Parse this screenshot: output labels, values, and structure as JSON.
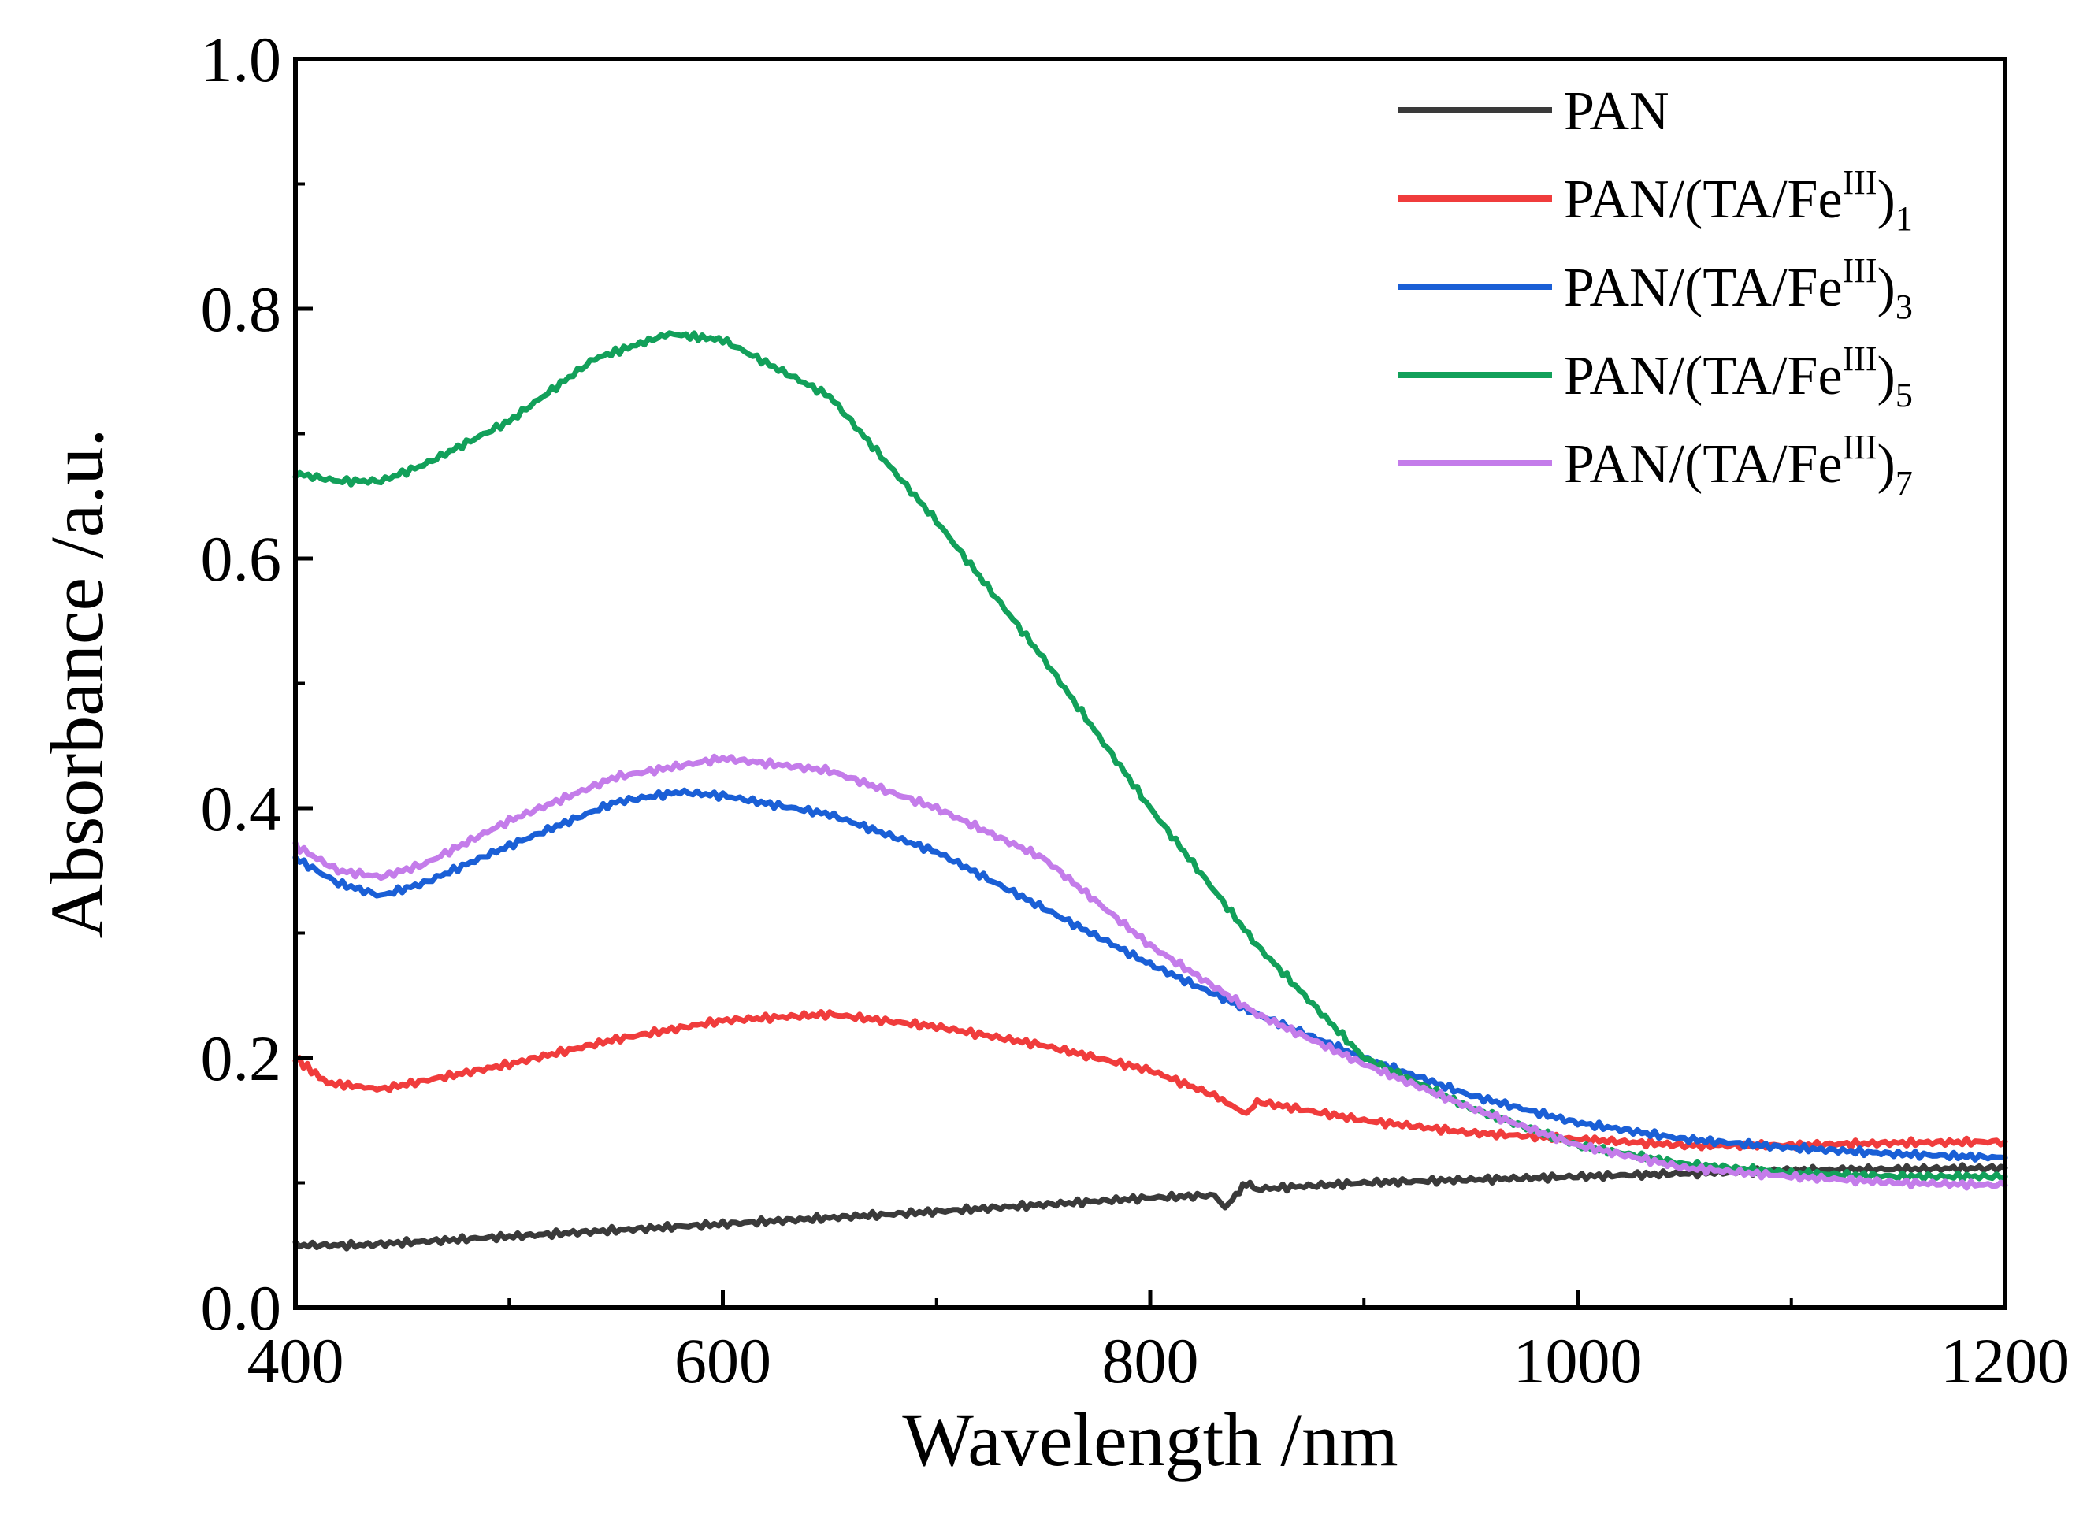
{
  "chart_data": {
    "type": "line",
    "title": "",
    "xlabel": "Wavelength /nm",
    "ylabel": "Absorbance /a.u.",
    "xlim": [
      400,
      1200
    ],
    "ylim": [
      0.0,
      1.0
    ],
    "x_ticks": [
      400,
      600,
      800,
      1000,
      1200
    ],
    "x_tick_labels": [
      "400",
      "600",
      "800",
      "1000",
      "1200"
    ],
    "y_ticks": [
      0.0,
      0.2,
      0.4,
      0.6,
      0.8,
      1.0
    ],
    "y_tick_labels": [
      "0.0",
      "0.2",
      "0.4",
      "0.6",
      "0.8",
      "1.0"
    ],
    "grid": false,
    "legend_position": "top-right",
    "series": [
      {
        "name": "PAN",
        "label_main": "PAN",
        "label_sup": "",
        "label_sub": "",
        "color": "#3a3a3a",
        "x": [
          400,
          430,
          500,
          600,
          700,
          800,
          830,
          835,
          840,
          845,
          850,
          900,
          1000,
          1100,
          1200
        ],
        "y": [
          0.05,
          0.05,
          0.057,
          0.067,
          0.077,
          0.088,
          0.09,
          0.08,
          0.09,
          0.1,
          0.095,
          0.1,
          0.105,
          0.11,
          0.112
        ]
      },
      {
        "name": "PAN/(TA/Fe III)1",
        "label_main": "PAN/(TA/Fe",
        "label_sup": "III",
        "label_sub": "1",
        "color": "#f03c3c",
        "x": [
          400,
          415,
          440,
          470,
          500,
          550,
          600,
          650,
          700,
          750,
          800,
          830,
          845,
          850,
          900,
          950,
          1000,
          1050,
          1100,
          1150,
          1200
        ],
        "y": [
          0.2,
          0.18,
          0.175,
          0.185,
          0.195,
          0.215,
          0.23,
          0.235,
          0.225,
          0.21,
          0.19,
          0.17,
          0.155,
          0.165,
          0.15,
          0.14,
          0.135,
          0.13,
          0.13,
          0.132,
          0.133
        ]
      },
      {
        "name": "PAN/(TA/Fe III)3",
        "label_main": "PAN/(TA/Fe",
        "label_sup": "III",
        "label_sub": "3",
        "color": "#1a5fd6",
        "x": [
          400,
          420,
          440,
          460,
          500,
          550,
          580,
          600,
          650,
          700,
          750,
          800,
          850,
          900,
          950,
          1000,
          1050,
          1100,
          1150,
          1200
        ],
        "y": [
          0.36,
          0.34,
          0.33,
          0.34,
          0.37,
          0.405,
          0.413,
          0.41,
          0.395,
          0.365,
          0.32,
          0.275,
          0.235,
          0.2,
          0.17,
          0.148,
          0.135,
          0.128,
          0.123,
          0.12
        ]
      },
      {
        "name": "PAN/(TA/Fe III)5",
        "label_main": "PAN/(TA/Fe",
        "label_sup": "III",
        "label_sub": "5",
        "color": "#12a05a",
        "x": [
          400,
          420,
          440,
          460,
          500,
          540,
          575,
          600,
          650,
          700,
          750,
          800,
          850,
          900,
          950,
          1000,
          1050,
          1100,
          1150,
          1200
        ],
        "y": [
          0.668,
          0.662,
          0.662,
          0.675,
          0.71,
          0.76,
          0.78,
          0.775,
          0.73,
          0.63,
          0.52,
          0.4,
          0.29,
          0.2,
          0.16,
          0.13,
          0.115,
          0.108,
          0.105,
          0.105
        ]
      },
      {
        "name": "PAN/(TA/Fe III)7",
        "label_main": "PAN/(TA/Fe",
        "label_sup": "III",
        "label_sub": "7",
        "color": "#c47cea",
        "x": [
          400,
          420,
          440,
          460,
          500,
          550,
          600,
          650,
          700,
          750,
          800,
          850,
          900,
          950,
          1000,
          1050,
          1100,
          1150,
          1200
        ],
        "y": [
          0.37,
          0.35,
          0.345,
          0.355,
          0.39,
          0.425,
          0.44,
          0.43,
          0.4,
          0.36,
          0.29,
          0.235,
          0.195,
          0.16,
          0.13,
          0.112,
          0.105,
          0.1,
          0.098
        ]
      }
    ]
  }
}
